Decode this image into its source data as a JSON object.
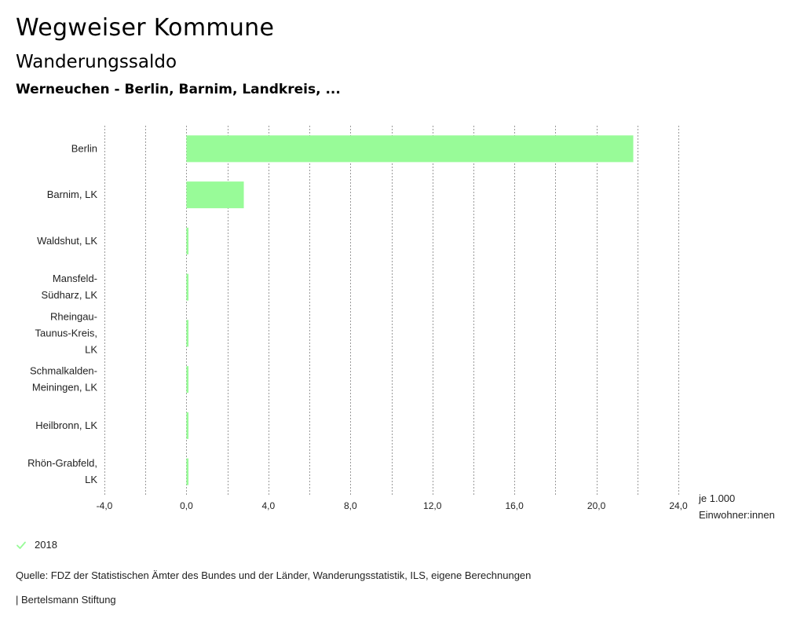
{
  "header": {
    "title": "Wegweiser Kommune",
    "subtitle": "Wanderungssaldo",
    "location": "Werneuchen - Berlin, Barnim, Landkreis, ..."
  },
  "chart_data": {
    "type": "bar",
    "orientation": "horizontal",
    "categories": [
      [
        "Berlin"
      ],
      [
        "Barnim, LK"
      ],
      [
        "Waldshut, LK"
      ],
      [
        "Mansfeld-",
        "Südharz, LK"
      ],
      [
        "Rheingau-",
        "Taunus-Kreis,",
        "LK"
      ],
      [
        "Schmalkalden-",
        "Meiningen, LK"
      ],
      [
        "Heilbronn, LK"
      ],
      [
        "Rhön-Grabfeld,",
        "LK"
      ]
    ],
    "series": [
      {
        "name": "2018",
        "color": "#98fb98",
        "values": [
          21.8,
          2.8,
          0.1,
          0.1,
          0.1,
          0.1,
          0.1,
          0.1
        ]
      }
    ],
    "xlim": [
      -4,
      24
    ],
    "xticks": [
      "-4,0",
      "0,0",
      "4,0",
      "8,0",
      "12,0",
      "16,0",
      "20,0",
      "24,0"
    ],
    "xtick_values": [
      -4,
      0,
      4,
      8,
      12,
      16,
      20,
      24
    ],
    "unit_label": [
      "je 1.000",
      "Einwohner:innen"
    ],
    "grid": true
  },
  "legend": {
    "label": "2018",
    "color": "#98fb98"
  },
  "footer": {
    "source": "Quelle: FDZ der Statistischen Ämter des Bundes und der Länder, Wanderungsstatistik, ILS, eigene Berechnungen",
    "credit": "| Bertelsmann Stiftung"
  }
}
